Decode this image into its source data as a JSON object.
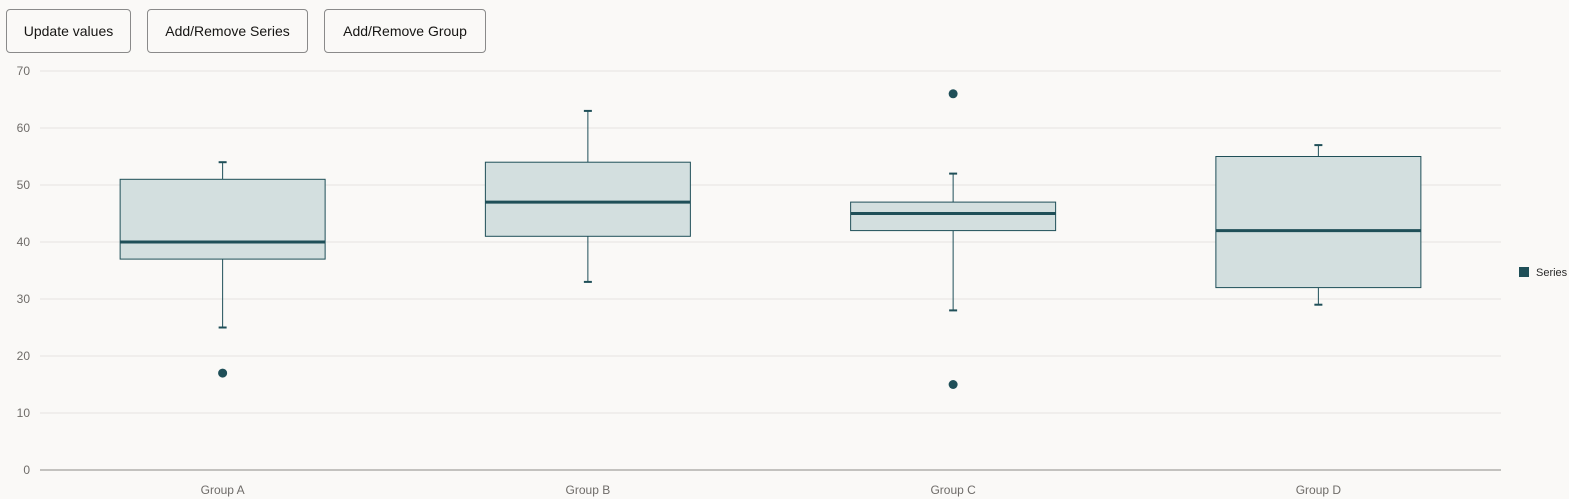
{
  "toolbar": {
    "update_label": "Update values",
    "series_label": "Add/Remove Series",
    "group_label": "Add/Remove Group"
  },
  "colors": {
    "box_fill": "#d3dfdf",
    "box_stroke": "#1f4f58",
    "grid": "#e6e4e1",
    "axis": "#8c8a87"
  },
  "chart_data": {
    "type": "boxplot",
    "ylim": [
      0,
      70
    ],
    "yticks": [
      0,
      10,
      20,
      30,
      40,
      50,
      60,
      70
    ],
    "grid": true,
    "legend_placement": "right",
    "categories": [
      "Group A",
      "Group B",
      "Group C",
      "Group D"
    ],
    "series": [
      {
        "name": "Series",
        "boxes": [
          {
            "low": 25,
            "q1": 37,
            "median": 40,
            "q3": 51,
            "high": 54,
            "outliers": [
              17
            ]
          },
          {
            "low": 33,
            "q1": 41,
            "median": 47,
            "q3": 54,
            "high": 63,
            "outliers": []
          },
          {
            "low": 28,
            "q1": 42,
            "median": 45,
            "q3": 47,
            "high": 52,
            "outliers": [
              15,
              66
            ]
          },
          {
            "low": 29,
            "q1": 32,
            "median": 42,
            "q3": 55,
            "high": 57,
            "outliers": []
          }
        ]
      }
    ]
  }
}
